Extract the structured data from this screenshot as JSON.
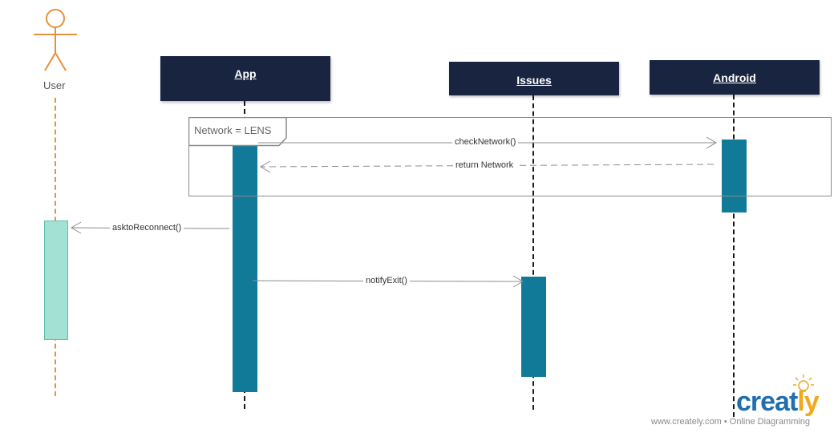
{
  "actor": {
    "label": "User",
    "icon": "stick-figure-icon",
    "color": "#e8913a"
  },
  "participants": [
    {
      "key": "app",
      "label": "App"
    },
    {
      "key": "issues",
      "label": "Issues"
    },
    {
      "key": "android",
      "label": "Android"
    }
  ],
  "frame": {
    "label": "Network = LENS"
  },
  "messages": [
    {
      "label": "checkNetwork()",
      "from": "App",
      "to": "Android",
      "type": "sync"
    },
    {
      "label": "return Network",
      "from": "Android",
      "to": "App",
      "type": "return"
    },
    {
      "label": "asktoReconnect()",
      "from": "App",
      "to": "User",
      "type": "sync"
    },
    {
      "label": "notifyExit()",
      "from": "App",
      "to": "Issues",
      "type": "sync"
    }
  ],
  "colors": {
    "participant_bg": "#192440",
    "activation": "#117a99",
    "user_activation": "#a3e1d4",
    "lifeline_user": "#e8913a"
  },
  "branding": {
    "logo_text_main": "creat",
    "logo_text_end": "ly",
    "logo_icon": "lightbulb-icon",
    "tagline": "www.creately.com • Online Diagramming"
  }
}
